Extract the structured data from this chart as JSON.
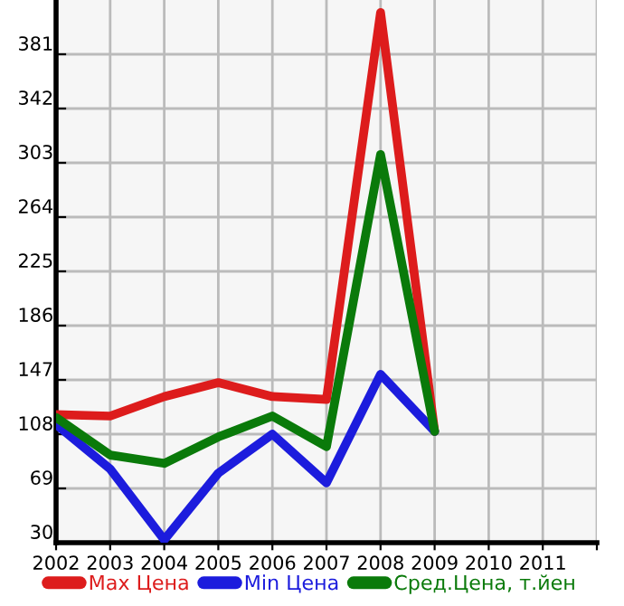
{
  "chart_data": {
    "type": "line",
    "x": [
      2002,
      2003,
      2004,
      2005,
      2006,
      2007,
      2008,
      2009
    ],
    "series": [
      {
        "name": "Max Цена",
        "color": "#dd1c1c",
        "values": [
          122,
          121,
          135,
          145,
          135,
          133,
          411,
          110
        ]
      },
      {
        "name": "Min Цена",
        "color": "#1c1cdd",
        "values": [
          115,
          83,
          32,
          80,
          108,
          73,
          151,
          110
        ]
      },
      {
        "name": "Сред.Цена, т.йен",
        "color": "#0a7a0a",
        "values": [
          120,
          93,
          87,
          106,
          121,
          99,
          309,
          110
        ]
      }
    ],
    "xlim": [
      2002,
      2012
    ],
    "xticks": [
      2002,
      2003,
      2004,
      2005,
      2006,
      2007,
      2008,
      2009,
      2010,
      2011,
      {
        "value": 2012,
        "label": null
      }
    ],
    "ylim": [
      30,
      420
    ],
    "yticks": [
      30,
      69,
      108,
      147,
      186,
      225,
      264,
      303,
      342,
      381
    ],
    "grid": true,
    "legend": "bottom",
    "marker": "none",
    "line_style": "solid"
  }
}
